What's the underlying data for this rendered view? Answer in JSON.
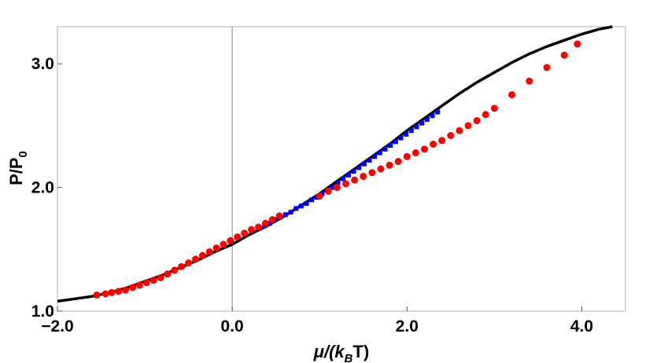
{
  "chart_data": {
    "type": "scatter",
    "xlabel": "μ/(k_B T)",
    "xlabel_main": "μ/(k",
    "xlabel_sub": "B",
    "xlabel_tail": "T)",
    "ylabel": "P/P_0",
    "ylabel_main": "P/P",
    "ylabel_sub": "0",
    "xlim": [
      -2.0,
      4.5
    ],
    "ylim": [
      1.0,
      3.3
    ],
    "grid": false,
    "xticks": [
      -2.0,
      0.0,
      2.0,
      4.0
    ],
    "xtick_labels": [
      "-2.0",
      "0.0",
      "2.0",
      "4.0"
    ],
    "yticks": [
      1.0,
      2.0,
      3.0
    ],
    "ytick_labels": [
      "1.0",
      "2.0",
      "3.0"
    ],
    "series": [
      {
        "kind": "line",
        "color": "#000000",
        "x": [
          -2.0,
          -1.8,
          -1.6,
          -1.4,
          -1.2,
          -1.0,
          -0.8,
          -0.6,
          -0.4,
          -0.2,
          0.0,
          0.2,
          0.4,
          0.6,
          0.8,
          1.0,
          1.2,
          1.4,
          1.6,
          1.8,
          2.0,
          2.2,
          2.4,
          2.6,
          2.8,
          3.0,
          3.2,
          3.4,
          3.6,
          3.8,
          4.0,
          4.2,
          4.35
        ],
        "y": [
          1.08,
          1.1,
          1.12,
          1.15,
          1.19,
          1.24,
          1.29,
          1.35,
          1.41,
          1.48,
          1.54,
          1.62,
          1.69,
          1.77,
          1.86,
          1.95,
          2.05,
          2.15,
          2.25,
          2.35,
          2.46,
          2.56,
          2.66,
          2.76,
          2.85,
          2.93,
          3.01,
          3.08,
          3.14,
          3.19,
          3.24,
          3.28,
          3.3
        ]
      },
      {
        "kind": "squares",
        "color": "#0000ff",
        "x": [
          0.31,
          0.37,
          0.43,
          0.49,
          0.55,
          0.61,
          0.67,
          0.73,
          0.79,
          0.85,
          0.91,
          0.97,
          1.03,
          1.09,
          1.15,
          1.21,
          1.27,
          1.33,
          1.39,
          1.45,
          1.51,
          1.57,
          1.63,
          1.69,
          1.75,
          1.81,
          1.87,
          1.93,
          1.99,
          2.05,
          2.11,
          2.17,
          2.23,
          2.29,
          2.35
        ],
        "y": [
          1.67,
          1.69,
          1.71,
          1.74,
          1.76,
          1.78,
          1.8,
          1.83,
          1.85,
          1.87,
          1.9,
          1.92,
          1.95,
          1.98,
          2.0,
          2.04,
          2.07,
          2.1,
          2.13,
          2.16,
          2.19,
          2.22,
          2.25,
          2.28,
          2.31,
          2.34,
          2.37,
          2.4,
          2.43,
          2.46,
          2.49,
          2.52,
          2.55,
          2.58,
          2.61
        ]
      },
      {
        "kind": "circles",
        "color": "#ff0000",
        "x": [
          -1.55,
          -1.45,
          -1.38,
          -1.3,
          -1.22,
          -1.14,
          -1.06,
          -0.98,
          -0.9,
          -0.82,
          -0.74,
          -0.66,
          -0.58,
          -0.5,
          -0.42,
          -0.34,
          -0.26,
          -0.18,
          -0.1,
          -0.02,
          0.06,
          0.14,
          0.22,
          0.3,
          0.38,
          0.46,
          0.54,
          1.0,
          1.1,
          1.2,
          1.3,
          1.4,
          1.5,
          1.6,
          1.7,
          1.8,
          1.9,
          2.0,
          2.1,
          2.2,
          2.3,
          2.4,
          2.5,
          2.6,
          2.7,
          2.8,
          2.9,
          3.0,
          3.2,
          3.4,
          3.6,
          3.8,
          3.95
        ],
        "y": [
          1.13,
          1.14,
          1.15,
          1.16,
          1.17,
          1.19,
          1.21,
          1.23,
          1.25,
          1.27,
          1.3,
          1.33,
          1.36,
          1.39,
          1.42,
          1.45,
          1.48,
          1.51,
          1.54,
          1.57,
          1.6,
          1.63,
          1.66,
          1.68,
          1.71,
          1.74,
          1.77,
          1.93,
          1.97,
          2.0,
          2.03,
          2.06,
          2.09,
          2.12,
          2.15,
          2.18,
          2.21,
          2.25,
          2.28,
          2.31,
          2.35,
          2.38,
          2.42,
          2.46,
          2.5,
          2.54,
          2.59,
          2.64,
          2.75,
          2.86,
          2.97,
          3.07,
          3.16
        ]
      }
    ]
  }
}
